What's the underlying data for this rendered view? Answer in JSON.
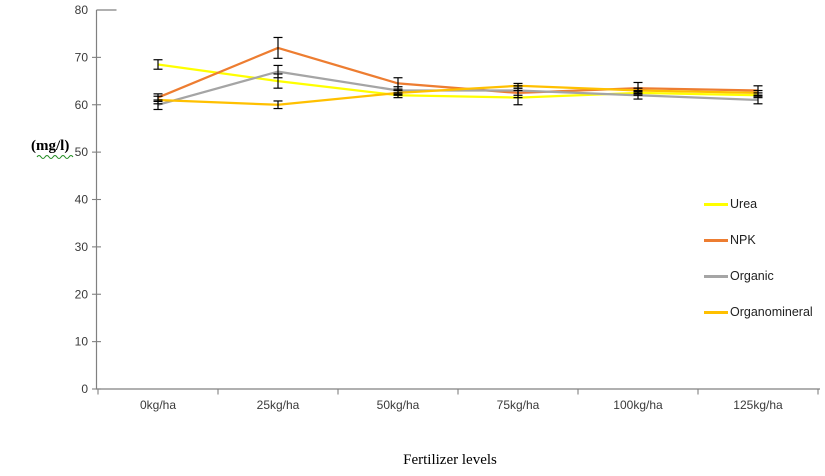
{
  "chart_data": {
    "type": "line",
    "title": "",
    "xlabel": "Fertilizer levels",
    "ylabel": "(mg/l)",
    "categories": [
      "0kg/ha",
      "25kg/ha",
      "50kg/ha",
      "75kg/ha",
      "100kg/ha",
      "125kg/ha"
    ],
    "ylim": [
      0,
      80
    ],
    "ytick_step": 10,
    "ytick_labels": [
      "0",
      "10",
      "20",
      "30",
      "40",
      "50",
      "60",
      "70",
      "80"
    ],
    "grid": false,
    "legend_position": "right",
    "legend_entries": [
      "Urea",
      "NPK",
      "Organic",
      "Organomineral"
    ],
    "series": [
      {
        "name": "Urea",
        "color": "#FFFF00",
        "values": [
          68.5,
          65.0,
          62.0,
          61.5,
          62.5,
          62.0
        ],
        "error": [
          1.0,
          1.5,
          0.5,
          1.5,
          0.5,
          0.5
        ]
      },
      {
        "name": "NPK",
        "color": "#ED7D31",
        "values": [
          61.5,
          72.0,
          64.5,
          62.5,
          63.5,
          63.0
        ],
        "error": [
          0.8,
          2.2,
          1.2,
          1.0,
          1.2,
          1.0
        ]
      },
      {
        "name": "Organic",
        "color": "#A5A5A5",
        "values": [
          60.0,
          67.0,
          63.0,
          63.0,
          62.0,
          61.0
        ],
        "error": [
          1.0,
          1.3,
          0.8,
          1.0,
          0.8,
          0.8
        ]
      },
      {
        "name": "Organomineral",
        "color": "#FFC000",
        "values": [
          61.0,
          60.0,
          62.5,
          64.0,
          63.0,
          62.5
        ],
        "error": [
          0.8,
          0.8,
          0.5,
          0.5,
          0.5,
          0.5
        ]
      }
    ],
    "error_bar_color": "#000000",
    "axis_color": "#808080",
    "spellcheck_underline_color": "#1e8a1e"
  }
}
